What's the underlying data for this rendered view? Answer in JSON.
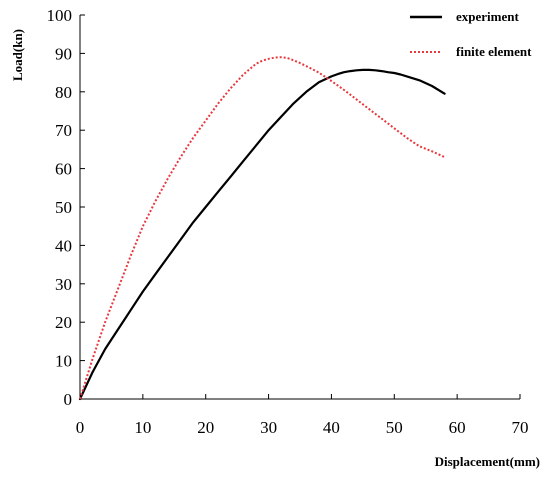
{
  "chart_data": {
    "type": "line",
    "title": "",
    "xlabel": "Displacement(mm)",
    "ylabel": "Load(kn)",
    "xlim": [
      0,
      70
    ],
    "ylim": [
      0,
      100
    ],
    "xticks": [
      0,
      10,
      20,
      30,
      40,
      50,
      60,
      70
    ],
    "yticks": [
      0,
      10,
      20,
      30,
      40,
      50,
      60,
      70,
      80,
      90,
      100
    ],
    "grid": false,
    "legend_position": "top-right",
    "series": [
      {
        "name": "experiment",
        "color": "#000000",
        "style": "solid",
        "x": [
          0,
          2,
          4,
          6,
          8,
          10,
          12,
          14,
          16,
          18,
          20,
          22,
          24,
          26,
          28,
          30,
          32,
          34,
          36,
          38,
          40,
          41,
          42,
          43,
          44,
          45,
          46,
          47,
          48,
          49,
          50,
          51,
          52,
          54,
          56,
          58
        ],
        "y": [
          0,
          7,
          13,
          18,
          23,
          28,
          32.5,
          37,
          41.5,
          46,
          50,
          54,
          58,
          62,
          66,
          70,
          73.5,
          77,
          80,
          82.5,
          84,
          84.6,
          85.1,
          85.4,
          85.6,
          85.7,
          85.7,
          85.6,
          85.4,
          85.1,
          84.9,
          84.5,
          84,
          83,
          81.5,
          79.5
        ]
      },
      {
        "name": "finite element",
        "color": "#e8383d",
        "style": "dotted",
        "x": [
          0,
          2,
          4,
          6,
          8,
          10,
          12,
          14,
          16,
          18,
          20,
          22,
          24,
          26,
          28,
          29,
          30,
          31,
          32,
          33,
          34,
          35,
          36,
          38,
          40,
          42,
          44,
          46,
          48,
          50,
          52,
          54,
          56,
          58
        ],
        "y": [
          0,
          10.5,
          20,
          28.5,
          37,
          45,
          51.5,
          57.5,
          63,
          68,
          72.5,
          77,
          81,
          84.5,
          87.3,
          88.1,
          88.6,
          88.9,
          89,
          88.8,
          88.2,
          87.5,
          86.7,
          85,
          82.8,
          80.5,
          78,
          75.5,
          73,
          70.5,
          68,
          65.8,
          64.5,
          63
        ]
      }
    ]
  }
}
